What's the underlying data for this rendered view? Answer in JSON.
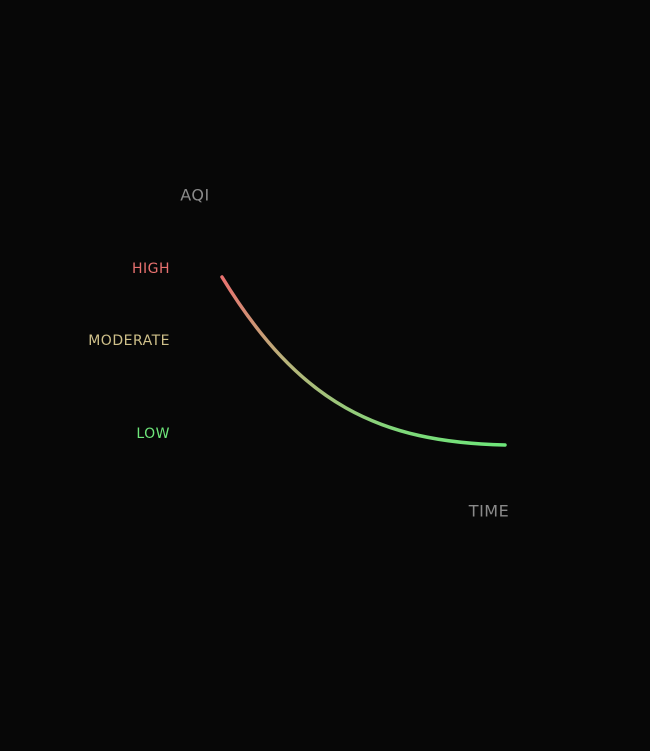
{
  "axes": {
    "y_label": "AQI",
    "x_label": "TIME"
  },
  "levels": [
    {
      "label": "HIGH",
      "color": "#e8716f"
    },
    {
      "label": "MODERATE",
      "color": "#cfc08a"
    },
    {
      "label": "LOW",
      "color": "#6ee67a"
    }
  ]
}
